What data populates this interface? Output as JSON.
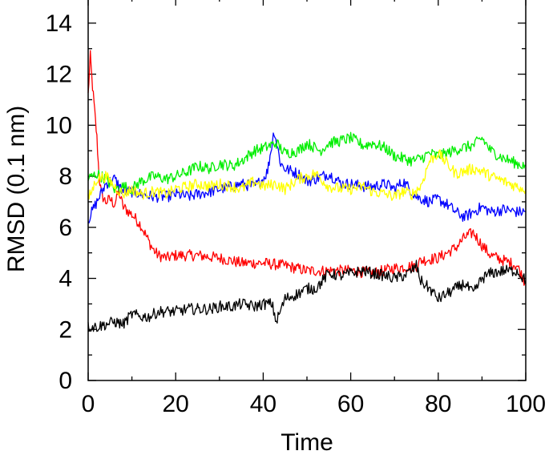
{
  "chart_data": {
    "type": "line",
    "xlabel": "Time",
    "ylabel": "RMSD (0.1 nm)",
    "xlim": [
      0,
      100
    ],
    "ylim": [
      0,
      15
    ],
    "x_ticks": [
      0,
      20,
      40,
      60,
      80,
      100
    ],
    "y_ticks": [
      0,
      2,
      4,
      6,
      8,
      10,
      12,
      14
    ],
    "grid": false,
    "legend": "none",
    "series": [
      {
        "color": "#ff0000",
        "x": [
          0,
          0.5,
          1,
          1.5,
          2,
          2.5,
          3,
          4,
          5,
          6,
          7,
          8,
          10,
          12,
          14,
          15,
          16,
          18,
          20,
          25,
          30,
          35,
          40,
          45,
          50,
          55,
          60,
          65,
          70,
          75,
          76,
          80,
          84,
          86,
          88,
          90,
          92,
          95,
          98,
          100
        ],
        "y": [
          11.2,
          12.7,
          11.5,
          10.5,
          9.5,
          8.0,
          7.3,
          7.0,
          7.1,
          6.9,
          7.4,
          6.8,
          6.5,
          6.1,
          5.4,
          5.1,
          4.9,
          4.8,
          4.9,
          4.9,
          4.8,
          4.6,
          4.6,
          4.5,
          4.3,
          4.3,
          4.3,
          4.2,
          4.4,
          4.5,
          4.7,
          4.8,
          5.2,
          5.6,
          5.8,
          5.3,
          4.9,
          4.7,
          4.5,
          3.8
        ]
      },
      {
        "color": "#0000ff",
        "x": [
          0,
          2,
          4,
          6,
          8,
          10,
          12,
          15,
          18,
          20,
          23,
          25,
          28,
          30,
          33,
          35,
          38,
          40,
          41,
          42.5,
          44,
          45,
          48,
          50,
          52,
          55,
          58,
          60,
          63,
          65,
          68,
          70,
          72,
          75,
          78,
          80,
          82,
          84,
          86,
          88,
          90,
          92,
          95,
          98,
          100
        ],
        "y": [
          6.3,
          7.0,
          7.7,
          7.9,
          7.4,
          7.4,
          7.3,
          7.2,
          7.2,
          7.3,
          7.2,
          7.3,
          7.4,
          7.5,
          7.6,
          7.7,
          7.6,
          7.9,
          8.2,
          9.8,
          8.5,
          8.3,
          8.1,
          7.8,
          7.9,
          8.1,
          7.7,
          7.7,
          7.6,
          7.6,
          7.7,
          7.5,
          7.8,
          7.2,
          7.0,
          7.1,
          6.9,
          6.6,
          6.4,
          6.6,
          6.8,
          6.6,
          6.7,
          6.6,
          6.6
        ]
      },
      {
        "color": "#00ee00",
        "x": [
          0,
          2,
          4,
          6,
          8,
          10,
          12,
          15,
          18,
          20,
          23,
          25,
          28,
          30,
          33,
          35,
          38,
          40,
          43,
          45,
          48,
          50,
          53,
          55,
          58,
          60,
          63,
          65,
          68,
          70,
          72,
          74,
          76,
          78,
          80,
          82,
          85,
          88,
          90,
          92,
          95,
          98,
          100
        ],
        "y": [
          7.9,
          8.1,
          7.9,
          7.5,
          7.6,
          7.5,
          7.8,
          8.0,
          7.9,
          8.0,
          8.2,
          8.4,
          8.3,
          8.5,
          8.4,
          8.6,
          9.0,
          9.1,
          9.3,
          8.9,
          9.0,
          9.3,
          9.0,
          9.3,
          9.4,
          9.5,
          9.2,
          9.3,
          9.1,
          8.8,
          8.7,
          8.6,
          8.7,
          8.9,
          8.8,
          8.9,
          9.1,
          9.2,
          9.5,
          9.0,
          8.7,
          8.5,
          8.4
        ]
      },
      {
        "color": "#ffff00",
        "x": [
          0,
          2,
          4,
          6,
          8,
          10,
          12,
          15,
          18,
          20,
          23,
          25,
          28,
          30,
          33,
          35,
          38,
          40,
          43,
          45,
          48,
          50,
          52,
          55,
          58,
          60,
          63,
          65,
          68,
          70,
          72,
          74,
          76,
          78,
          80,
          82,
          84,
          86,
          88,
          90,
          92,
          95,
          98,
          100
        ],
        "y": [
          7.1,
          7.9,
          8.0,
          7.6,
          7.3,
          7.5,
          7.3,
          7.4,
          7.3,
          7.5,
          7.6,
          7.7,
          7.6,
          7.7,
          7.6,
          7.5,
          7.8,
          7.6,
          7.7,
          7.5,
          7.9,
          8.0,
          8.1,
          7.6,
          7.5,
          7.5,
          7.6,
          7.4,
          7.3,
          7.2,
          7.4,
          7.3,
          7.6,
          8.6,
          8.9,
          8.5,
          8.1,
          8.2,
          8.3,
          8.2,
          8.0,
          7.8,
          7.6,
          7.5
        ]
      },
      {
        "color": "#000000",
        "x": [
          0,
          2,
          4,
          6,
          8,
          10,
          12,
          14,
          16,
          18,
          20,
          23,
          25,
          28,
          30,
          33,
          35,
          38,
          40,
          42,
          43,
          45,
          48,
          50,
          52,
          53,
          55,
          58,
          60,
          63,
          65,
          68,
          70,
          72,
          74,
          75,
          76,
          78,
          80,
          82,
          84,
          86,
          88,
          90,
          92,
          95,
          98,
          100
        ],
        "y": [
          2.1,
          2.1,
          2.2,
          2.3,
          2.2,
          2.6,
          2.5,
          2.5,
          2.7,
          2.7,
          2.7,
          2.8,
          2.8,
          2.8,
          2.9,
          2.9,
          3.0,
          2.9,
          3.0,
          3.0,
          2.3,
          3.2,
          3.4,
          3.6,
          3.6,
          3.8,
          4.2,
          4.1,
          4.2,
          4.3,
          4.2,
          4.1,
          4.0,
          4.1,
          4.3,
          4.5,
          3.9,
          3.6,
          3.2,
          3.4,
          3.6,
          3.8,
          3.4,
          4.0,
          4.2,
          4.3,
          4.3,
          3.9
        ]
      }
    ]
  }
}
